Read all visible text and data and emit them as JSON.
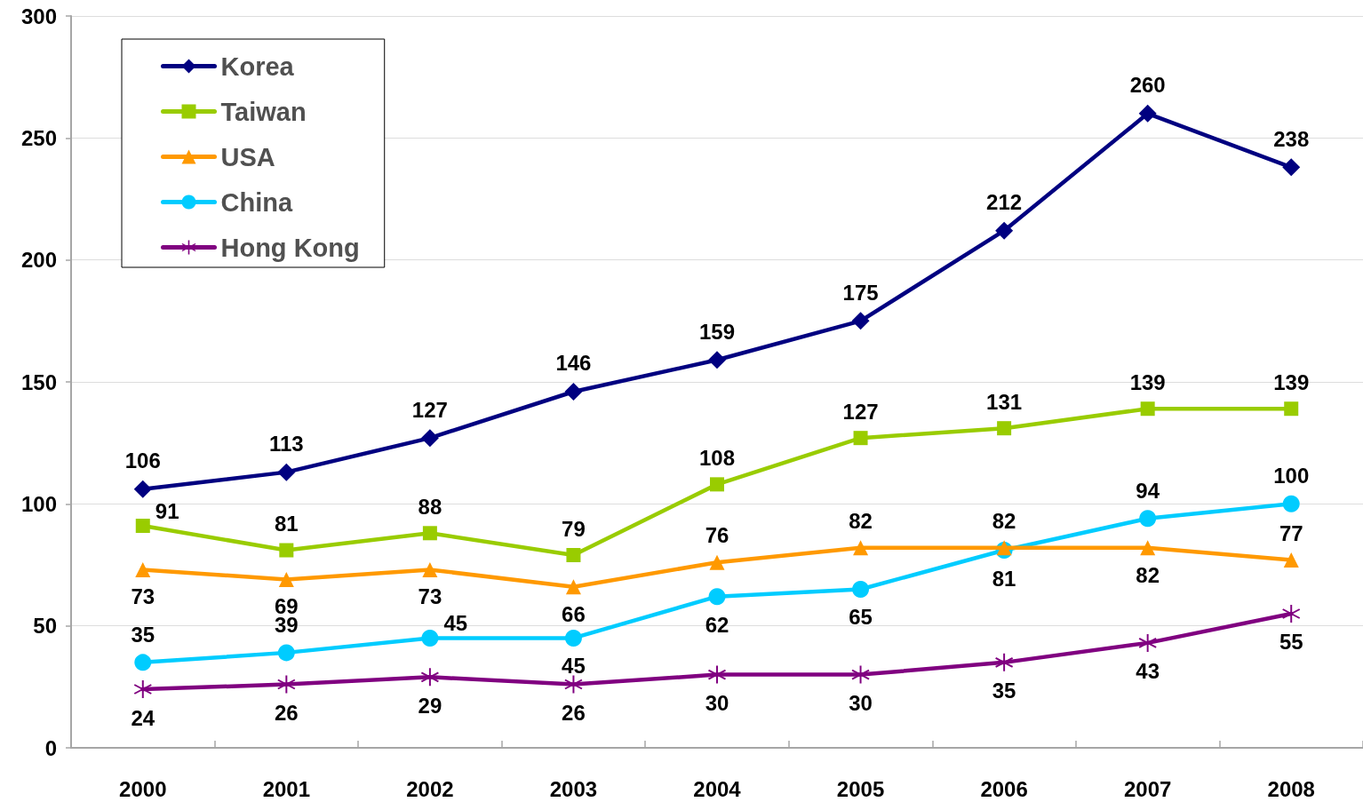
{
  "chart_data": {
    "type": "line",
    "categories": [
      "2000",
      "2001",
      "2002",
      "2003",
      "2004",
      "2005",
      "2006",
      "2007",
      "2008"
    ],
    "series": [
      {
        "name": "Korea",
        "color": "#000080",
        "marker": "diamond",
        "values": [
          106,
          113,
          127,
          146,
          159,
          175,
          212,
          260,
          238
        ]
      },
      {
        "name": "Taiwan",
        "color": "#99cc00",
        "marker": "square",
        "values": [
          91,
          81,
          88,
          79,
          108,
          127,
          131,
          139,
          139
        ]
      },
      {
        "name": "USA",
        "color": "#ff9900",
        "marker": "triangle",
        "values": [
          73,
          69,
          73,
          66,
          76,
          82,
          82,
          82,
          77
        ]
      },
      {
        "name": "China",
        "color": "#00ccff",
        "marker": "circle",
        "values": [
          35,
          39,
          45,
          45,
          62,
          65,
          81,
          94,
          100
        ]
      },
      {
        "name": "Hong Kong",
        "color": "#800080",
        "marker": "cross",
        "values": [
          24,
          26,
          29,
          26,
          30,
          30,
          35,
          43,
          55
        ]
      }
    ],
    "ylim": [
      0,
      300
    ],
    "yticks": [
      0,
      50,
      100,
      150,
      200,
      250,
      300
    ],
    "grid": "y",
    "legend": "top left",
    "data_labels": true,
    "line_style": "solid"
  }
}
